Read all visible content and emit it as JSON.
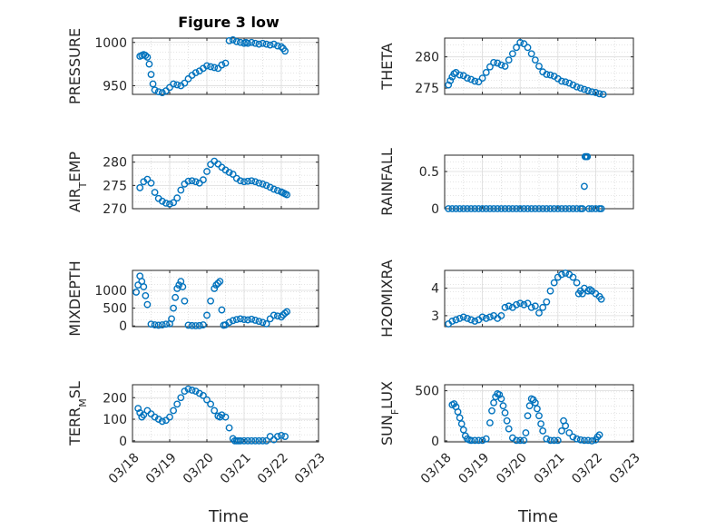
{
  "figure_title": "Figure 3 low",
  "x_axis_title": "Time",
  "x_tick_labels": [
    "03/18",
    "03/19",
    "03/20",
    "03/21",
    "03/22",
    "03/23"
  ],
  "marker_color": "#0072BD",
  "chart_data": [
    {
      "type": "scatter",
      "id": "pressure",
      "ylabel": "PRESSURE",
      "xlim": [
        0,
        5
      ],
      "ylim": [
        940,
        1005
      ],
      "yticks": [
        950,
        1000
      ],
      "grid": true,
      "x": [
        0.2,
        0.25,
        0.3,
        0.35,
        0.4,
        0.45,
        0.5,
        0.55,
        0.6,
        0.7,
        0.8,
        0.9,
        1.0,
        1.1,
        1.2,
        1.3,
        1.4,
        1.5,
        1.6,
        1.7,
        1.8,
        1.9,
        2.0,
        2.1,
        2.2,
        2.3,
        2.4,
        2.5,
        2.6,
        2.7,
        2.8,
        2.9,
        3.0,
        3.05,
        3.1,
        3.2,
        3.3,
        3.4,
        3.5,
        3.6,
        3.7,
        3.8,
        3.9,
        4.0,
        4.05,
        4.1
      ],
      "y": [
        984,
        985,
        986,
        985,
        983,
        975,
        963,
        952,
        945,
        943,
        942,
        944,
        948,
        952,
        951,
        950,
        953,
        958,
        962,
        965,
        967,
        970,
        973,
        972,
        971,
        970,
        974,
        976,
        1002,
        1003,
        1001,
        1000,
        999,
        1000,
        999,
        1000,
        999,
        998,
        999,
        998,
        997,
        998,
        996,
        995,
        993,
        990
      ]
    },
    {
      "type": "scatter",
      "id": "theta",
      "ylabel": "THETA",
      "xlim": [
        0,
        5
      ],
      "ylim": [
        274,
        283
      ],
      "yticks": [
        275,
        280
      ],
      "grid": true,
      "x": [
        0.1,
        0.15,
        0.2,
        0.25,
        0.3,
        0.4,
        0.5,
        0.6,
        0.7,
        0.8,
        0.9,
        1.0,
        1.1,
        1.2,
        1.3,
        1.4,
        1.5,
        1.6,
        1.7,
        1.8,
        1.9,
        2.0,
        2.1,
        2.2,
        2.3,
        2.4,
        2.5,
        2.6,
        2.7,
        2.8,
        2.9,
        3.0,
        3.1,
        3.2,
        3.3,
        3.4,
        3.5,
        3.6,
        3.7,
        3.8,
        3.9,
        4.0,
        4.1,
        4.2
      ],
      "y": [
        275.5,
        276.2,
        276.8,
        277.3,
        277.5,
        277.1,
        277.0,
        276.6,
        276.4,
        276.1,
        276.0,
        276.6,
        277.5,
        278.4,
        279.1,
        279.0,
        278.7,
        278.5,
        279.5,
        280.5,
        281.5,
        282.3,
        282.1,
        281.5,
        280.5,
        279.5,
        278.5,
        277.6,
        277.2,
        277.1,
        276.9,
        276.5,
        276.1,
        276.0,
        275.8,
        275.5,
        275.2,
        275.0,
        274.8,
        274.6,
        274.4,
        274.3,
        274.1,
        274.0
      ]
    },
    {
      "type": "scatter",
      "id": "air_temp",
      "ylabel": "AIR_TEMP",
      "xlim": [
        0,
        5
      ],
      "ylim": [
        270,
        281.5
      ],
      "yticks": [
        270,
        275,
        280
      ],
      "grid": true,
      "x": [
        0.2,
        0.3,
        0.4,
        0.5,
        0.6,
        0.7,
        0.8,
        0.9,
        1.0,
        1.1,
        1.2,
        1.3,
        1.4,
        1.5,
        1.6,
        1.7,
        1.8,
        1.9,
        2.0,
        2.1,
        2.2,
        2.3,
        2.4,
        2.5,
        2.6,
        2.7,
        2.8,
        2.9,
        3.0,
        3.1,
        3.2,
        3.3,
        3.4,
        3.5,
        3.6,
        3.7,
        3.8,
        3.9,
        4.0,
        4.05,
        4.1,
        4.15
      ],
      "y": [
        274.5,
        275.8,
        276.3,
        275.5,
        273.5,
        272.2,
        271.6,
        271.2,
        271.0,
        271.3,
        272.3,
        274.0,
        275.3,
        275.9,
        276.0,
        275.8,
        275.5,
        276.2,
        278.0,
        279.5,
        280.2,
        279.6,
        278.9,
        278.3,
        277.8,
        277.4,
        276.5,
        276.0,
        275.8,
        275.9,
        276.0,
        275.8,
        275.5,
        275.3,
        275.0,
        274.6,
        274.2,
        273.9,
        273.6,
        273.4,
        273.2,
        273.0
      ]
    },
    {
      "type": "scatter",
      "id": "rainfall",
      "ylabel": "RAINFALL",
      "xlim": [
        0,
        5
      ],
      "ylim": [
        0,
        0.72
      ],
      "yticks": [
        0,
        0.5
      ],
      "grid": true,
      "x": [
        0.1,
        0.2,
        0.3,
        0.4,
        0.5,
        0.6,
        0.7,
        0.8,
        0.9,
        1.0,
        1.1,
        1.2,
        1.3,
        1.4,
        1.5,
        1.6,
        1.7,
        1.8,
        1.9,
        2.0,
        2.1,
        2.2,
        2.3,
        2.4,
        2.5,
        2.6,
        2.7,
        2.8,
        2.9,
        3.0,
        3.1,
        3.2,
        3.3,
        3.4,
        3.5,
        3.6,
        3.65,
        3.7,
        3.72,
        3.75,
        3.78,
        3.82,
        3.9,
        4.0,
        4.1,
        4.15
      ],
      "y": [
        0,
        0,
        0,
        0,
        0,
        0,
        0,
        0,
        0,
        0,
        0,
        0,
        0,
        0,
        0,
        0,
        0,
        0,
        0,
        0,
        0,
        0,
        0,
        0,
        0,
        0,
        0,
        0,
        0,
        0,
        0,
        0,
        0,
        0,
        0,
        0,
        0,
        0.3,
        0.7,
        0.7,
        0.7,
        0,
        0,
        0,
        0,
        0
      ]
    },
    {
      "type": "scatter",
      "id": "mixdepth",
      "ylabel": "MIXDEPTH",
      "xlim": [
        0,
        5
      ],
      "ylim": [
        -20,
        1560
      ],
      "yticks": [
        0,
        500,
        1000
      ],
      "grid": true,
      "x": [
        0.1,
        0.15,
        0.2,
        0.25,
        0.3,
        0.35,
        0.4,
        0.5,
        0.6,
        0.7,
        0.8,
        0.9,
        1.0,
        1.05,
        1.1,
        1.15,
        1.2,
        1.25,
        1.3,
        1.35,
        1.4,
        1.5,
        1.6,
        1.7,
        1.8,
        1.9,
        2.0,
        2.1,
        2.2,
        2.25,
        2.3,
        2.35,
        2.4,
        2.45,
        2.5,
        2.6,
        2.7,
        2.8,
        2.9,
        3.0,
        3.1,
        3.2,
        3.3,
        3.4,
        3.5,
        3.6,
        3.7,
        3.8,
        3.9,
        4.0,
        4.05,
        4.1,
        4.15
      ],
      "y": [
        950,
        1150,
        1400,
        1250,
        1100,
        850,
        600,
        50,
        30,
        20,
        30,
        50,
        60,
        200,
        500,
        800,
        1050,
        1150,
        1250,
        1100,
        700,
        20,
        10,
        5,
        10,
        30,
        300,
        700,
        1050,
        1150,
        1200,
        1250,
        450,
        20,
        30,
        100,
        150,
        180,
        200,
        180,
        170,
        190,
        160,
        130,
        100,
        60,
        200,
        300,
        280,
        250,
        310,
        360,
        400
      ]
    },
    {
      "type": "scatter",
      "id": "h2omixra",
      "ylabel": "H2OMIXRA",
      "xlim": [
        0,
        5
      ],
      "ylim": [
        2.6,
        4.65
      ],
      "yticks": [
        3,
        4
      ],
      "grid": true,
      "x": [
        0.1,
        0.2,
        0.3,
        0.4,
        0.5,
        0.6,
        0.7,
        0.8,
        0.9,
        1.0,
        1.1,
        1.2,
        1.3,
        1.4,
        1.5,
        1.6,
        1.7,
        1.8,
        1.9,
        2.0,
        2.1,
        2.2,
        2.3,
        2.4,
        2.5,
        2.6,
        2.7,
        2.8,
        2.9,
        3.0,
        3.1,
        3.2,
        3.3,
        3.4,
        3.5,
        3.55,
        3.6,
        3.65,
        3.7,
        3.8,
        3.85,
        3.9,
        4.0,
        4.1,
        4.15
      ],
      "y": [
        2.7,
        2.8,
        2.85,
        2.9,
        2.95,
        2.9,
        2.85,
        2.8,
        2.85,
        2.95,
        2.9,
        2.95,
        3.0,
        2.9,
        3.0,
        3.3,
        3.35,
        3.3,
        3.4,
        3.45,
        3.4,
        3.45,
        3.3,
        3.35,
        3.1,
        3.3,
        3.5,
        3.9,
        4.2,
        4.4,
        4.5,
        4.55,
        4.5,
        4.4,
        4.2,
        3.8,
        3.9,
        3.8,
        4.0,
        3.9,
        3.95,
        3.9,
        3.8,
        3.7,
        3.6
      ]
    },
    {
      "type": "scatter",
      "id": "terr_msl",
      "ylabel": "TERR_MSL",
      "xlim": [
        0,
        5
      ],
      "ylim": [
        -5,
        260
      ],
      "yticks": [
        0,
        100,
        200
      ],
      "grid": true,
      "x": [
        0.15,
        0.2,
        0.25,
        0.3,
        0.4,
        0.5,
        0.6,
        0.7,
        0.8,
        0.9,
        1.0,
        1.1,
        1.2,
        1.3,
        1.4,
        1.5,
        1.6,
        1.7,
        1.8,
        1.9,
        2.0,
        2.1,
        2.2,
        2.3,
        2.35,
        2.4,
        2.5,
        2.6,
        2.7,
        2.75,
        2.8,
        2.85,
        2.9,
        3.0,
        3.1,
        3.2,
        3.3,
        3.4,
        3.5,
        3.6,
        3.7,
        3.8,
        3.9,
        4.0,
        4.1
      ],
      "y": [
        150,
        130,
        110,
        120,
        140,
        125,
        110,
        100,
        90,
        95,
        110,
        140,
        170,
        200,
        230,
        240,
        235,
        230,
        220,
        210,
        190,
        170,
        140,
        115,
        110,
        120,
        110,
        60,
        10,
        0,
        0,
        0,
        0,
        0,
        0,
        0,
        0,
        0,
        0,
        0,
        20,
        5,
        20,
        25,
        20
      ]
    },
    {
      "type": "scatter",
      "id": "sun_flux",
      "ylabel": "SUN_FLUX",
      "xlim": [
        0,
        5
      ],
      "ylim": [
        -10,
        560
      ],
      "yticks": [
        0,
        500
      ],
      "grid": true,
      "x": [
        0.2,
        0.25,
        0.3,
        0.35,
        0.4,
        0.45,
        0.5,
        0.55,
        0.6,
        0.65,
        0.7,
        0.8,
        0.9,
        1.0,
        1.1,
        1.2,
        1.25,
        1.3,
        1.35,
        1.4,
        1.45,
        1.5,
        1.55,
        1.6,
        1.65,
        1.7,
        1.8,
        1.9,
        2.0,
        2.1,
        2.15,
        2.2,
        2.25,
        2.3,
        2.35,
        2.4,
        2.45,
        2.5,
        2.55,
        2.6,
        2.7,
        2.8,
        2.9,
        3.0,
        3.1,
        3.15,
        3.2,
        3.3,
        3.4,
        3.5,
        3.6,
        3.7,
        3.8,
        3.9,
        4.0,
        4.05,
        4.1
      ],
      "y": [
        360,
        370,
        340,
        290,
        230,
        170,
        110,
        50,
        20,
        10,
        5,
        5,
        5,
        5,
        20,
        180,
        300,
        380,
        440,
        470,
        460,
        420,
        350,
        280,
        200,
        120,
        30,
        5,
        5,
        5,
        80,
        250,
        350,
        420,
        410,
        380,
        320,
        250,
        170,
        100,
        20,
        5,
        5,
        5,
        100,
        200,
        150,
        80,
        40,
        20,
        10,
        5,
        5,
        0,
        10,
        40,
        60
      ]
    }
  ]
}
